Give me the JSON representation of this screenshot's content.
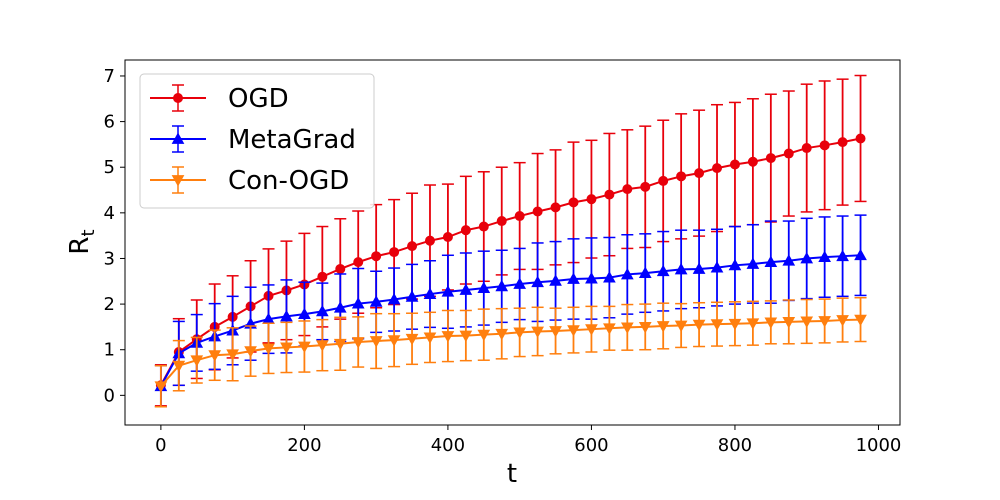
{
  "chart_data": {
    "type": "line",
    "title": "",
    "xlabel": "t",
    "ylabel_main": "R",
    "ylabel_sub": "t",
    "xlim": [
      -50,
      1030
    ],
    "ylim": [
      -0.65,
      7.35
    ],
    "xticks": [
      0,
      200,
      400,
      600,
      800,
      1000
    ],
    "yticks": [
      0,
      1,
      2,
      3,
      4,
      5,
      6,
      7
    ],
    "grid": false,
    "legend_position": "top-left",
    "x": [
      0,
      25,
      50,
      75,
      100,
      125,
      150,
      175,
      200,
      225,
      250,
      275,
      300,
      325,
      350,
      375,
      400,
      425,
      450,
      475,
      500,
      525,
      550,
      575,
      600,
      625,
      650,
      675,
      700,
      725,
      750,
      775,
      800,
      825,
      850,
      875,
      900,
      925,
      950,
      975
    ],
    "series": [
      {
        "name": "OGD",
        "color": "#e8000b",
        "marker": "circle",
        "values": [
          0.22,
          0.95,
          1.23,
          1.5,
          1.72,
          1.95,
          2.18,
          2.3,
          2.43,
          2.6,
          2.77,
          2.92,
          3.05,
          3.14,
          3.27,
          3.39,
          3.47,
          3.62,
          3.7,
          3.82,
          3.93,
          4.03,
          4.12,
          4.23,
          4.3,
          4.4,
          4.52,
          4.57,
          4.7,
          4.8,
          4.87,
          4.98,
          5.06,
          5.12,
          5.2,
          5.3,
          5.42,
          5.48,
          5.55,
          5.63
        ],
        "err": [
          0.45,
          0.73,
          0.86,
          0.94,
          0.9,
          1.0,
          1.03,
          1.08,
          1.12,
          1.1,
          1.1,
          1.12,
          1.13,
          1.15,
          1.16,
          1.22,
          1.16,
          1.18,
          1.2,
          1.18,
          1.17,
          1.27,
          1.26,
          1.32,
          1.29,
          1.34,
          1.3,
          1.33,
          1.33,
          1.37,
          1.38,
          1.39,
          1.36,
          1.38,
          1.4,
          1.37,
          1.4,
          1.41,
          1.38,
          1.38
        ]
      },
      {
        "name": "MetaGrad",
        "color": "#0000ff",
        "marker": "triangle-up",
        "values": [
          0.2,
          0.92,
          1.15,
          1.29,
          1.42,
          1.57,
          1.67,
          1.73,
          1.78,
          1.84,
          1.92,
          2.01,
          2.05,
          2.1,
          2.16,
          2.22,
          2.27,
          2.31,
          2.35,
          2.39,
          2.44,
          2.48,
          2.51,
          2.55,
          2.56,
          2.58,
          2.65,
          2.68,
          2.72,
          2.76,
          2.77,
          2.8,
          2.85,
          2.88,
          2.92,
          2.95,
          3.0,
          3.03,
          3.05,
          3.07
        ],
        "err": [
          0.45,
          0.7,
          0.62,
          0.72,
          0.75,
          0.8,
          0.75,
          0.8,
          0.7,
          0.62,
          0.74,
          0.77,
          0.67,
          0.69,
          0.71,
          0.73,
          0.8,
          0.81,
          0.81,
          0.79,
          0.78,
          0.86,
          0.86,
          0.88,
          0.89,
          0.88,
          0.87,
          0.86,
          0.87,
          0.86,
          0.85,
          0.84,
          0.85,
          0.86,
          0.9,
          0.87,
          0.88,
          0.88,
          0.88,
          0.88
        ]
      },
      {
        "name": "Con-OGD",
        "color": "#ff7f0e",
        "marker": "triangle-down",
        "values": [
          0.2,
          0.65,
          0.77,
          0.88,
          0.9,
          0.97,
          1.03,
          1.05,
          1.07,
          1.1,
          1.13,
          1.17,
          1.19,
          1.21,
          1.24,
          1.27,
          1.3,
          1.31,
          1.33,
          1.35,
          1.38,
          1.4,
          1.41,
          1.43,
          1.45,
          1.47,
          1.49,
          1.5,
          1.52,
          1.53,
          1.55,
          1.56,
          1.57,
          1.58,
          1.6,
          1.61,
          1.62,
          1.63,
          1.65,
          1.66
        ],
        "err": [
          0.45,
          0.55,
          0.5,
          0.55,
          0.58,
          0.55,
          0.55,
          0.55,
          0.56,
          0.56,
          0.58,
          0.55,
          0.6,
          0.58,
          0.56,
          0.55,
          0.56,
          0.55,
          0.56,
          0.55,
          0.53,
          0.53,
          0.5,
          0.5,
          0.5,
          0.48,
          0.5,
          0.5,
          0.5,
          0.48,
          0.48,
          0.48,
          0.48,
          0.48,
          0.47,
          0.48,
          0.48,
          0.48,
          0.48,
          0.48
        ]
      }
    ]
  }
}
